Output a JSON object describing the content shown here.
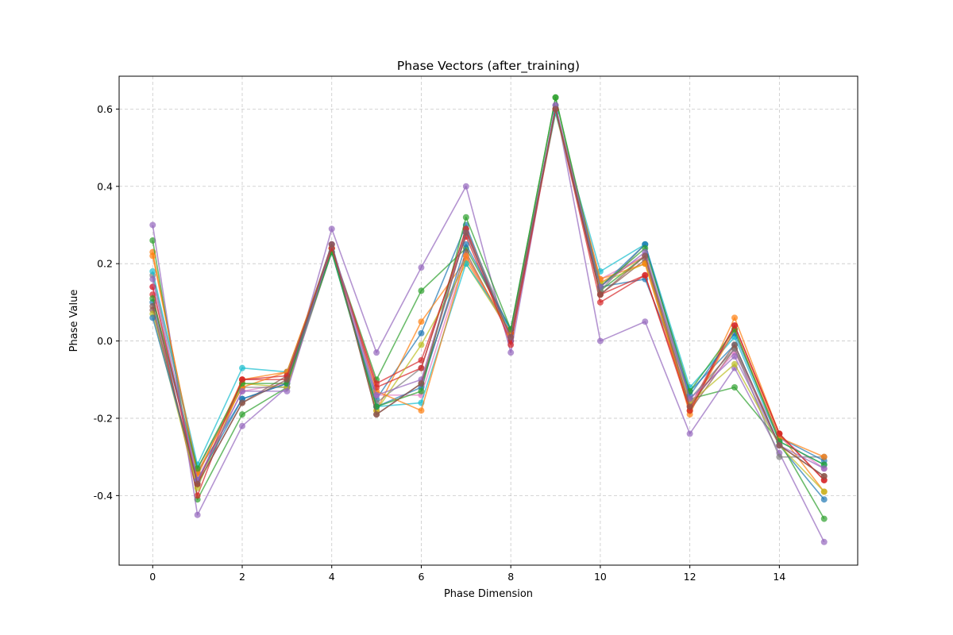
{
  "chart_data": {
    "type": "line",
    "title": "Phase Vectors (after_training)",
    "xlabel": "Phase Dimension",
    "ylabel": "Phase Value",
    "xlim": [
      -0.75,
      15.75
    ],
    "ylim": [
      -0.58,
      0.685
    ],
    "xticks": [
      "0",
      "2",
      "4",
      "6",
      "8",
      "10",
      "12",
      "14"
    ],
    "yticks": [
      "-0.4",
      "-0.2",
      "0.0",
      "0.2",
      "0.4",
      "0.6"
    ],
    "grid": true,
    "x": [
      0,
      1,
      2,
      3,
      4,
      5,
      6,
      7,
      8,
      9,
      10,
      11,
      12,
      13,
      14,
      15
    ],
    "colors": [
      "#1f77b4",
      "#ff7f0e",
      "#2ca02c",
      "#d62728",
      "#9467bd",
      "#8c564b",
      "#e377c2",
      "#7f7f7f",
      "#bcbd22",
      "#17becf"
    ],
    "series": [
      {
        "values": [
          0.1,
          -0.34,
          -0.15,
          -0.11,
          0.23,
          -0.15,
          0.02,
          0.3,
          0.0,
          0.6,
          0.14,
          0.16,
          -0.13,
          -0.01,
          -0.27,
          -0.41
        ]
      },
      {
        "values": [
          0.23,
          -0.35,
          -0.1,
          -0.08,
          0.24,
          -0.18,
          0.05,
          0.21,
          0.02,
          0.6,
          0.15,
          0.22,
          -0.19,
          0.06,
          -0.24,
          -0.39
        ]
      },
      {
        "values": [
          0.26,
          -0.41,
          -0.19,
          -0.12,
          0.24,
          -0.1,
          0.13,
          0.24,
          0.03,
          0.63,
          0.13,
          0.22,
          -0.15,
          -0.12,
          -0.26,
          -0.46
        ]
      },
      {
        "values": [
          0.12,
          -0.4,
          -0.1,
          -0.1,
          0.24,
          -0.11,
          -0.05,
          0.27,
          0.0,
          0.6,
          0.1,
          0.17,
          -0.17,
          0.04,
          -0.24,
          -0.36
        ]
      },
      {
        "values": [
          0.3,
          -0.45,
          -0.22,
          -0.12,
          0.29,
          -0.03,
          0.19,
          0.4,
          -0.03,
          0.61,
          0.0,
          0.05,
          -0.24,
          -0.07,
          -0.29,
          -0.52
        ]
      },
      {
        "values": [
          0.08,
          -0.37,
          -0.16,
          -0.09,
          0.25,
          -0.19,
          -0.11,
          0.23,
          0.01,
          0.6,
          0.12,
          0.21,
          -0.18,
          -0.02,
          -0.27,
          -0.35
        ]
      },
      {
        "values": [
          0.14,
          -0.36,
          -0.13,
          -0.11,
          0.23,
          -0.14,
          -0.14,
          0.22,
          0.01,
          0.59,
          0.16,
          0.22,
          -0.16,
          -0.03,
          -0.25,
          -0.33
        ]
      },
      {
        "values": [
          0.17,
          -0.33,
          -0.12,
          -0.12,
          0.23,
          -0.16,
          -0.07,
          0.29,
          0.02,
          0.6,
          0.13,
          0.25,
          -0.15,
          -0.02,
          -0.3,
          -0.3
        ]
      },
      {
        "values": [
          0.07,
          -0.38,
          -0.11,
          -0.12,
          0.24,
          -0.18,
          -0.01,
          0.2,
          0.02,
          0.59,
          0.15,
          0.2,
          -0.16,
          -0.06,
          -0.27,
          -0.39
        ]
      },
      {
        "values": [
          0.18,
          -0.32,
          -0.07,
          -0.08,
          0.23,
          -0.17,
          -0.16,
          0.2,
          0.03,
          0.59,
          0.18,
          0.25,
          -0.12,
          0.01,
          -0.26,
          -0.32
        ]
      },
      {
        "values": [
          0.06,
          -0.36,
          -0.15,
          -0.11,
          0.24,
          -0.17,
          -0.12,
          0.25,
          0.03,
          0.6,
          0.14,
          0.25,
          -0.14,
          0.02,
          -0.25,
          -0.31
        ]
      },
      {
        "values": [
          0.22,
          -0.34,
          -0.12,
          -0.08,
          0.24,
          -0.13,
          -0.18,
          0.22,
          0.02,
          0.6,
          0.16,
          0.2,
          -0.18,
          0.03,
          -0.25,
          -0.3
        ]
      },
      {
        "values": [
          0.11,
          -0.33,
          -0.11,
          -0.11,
          0.23,
          -0.17,
          -0.13,
          0.32,
          0.03,
          0.63,
          0.14,
          0.24,
          -0.13,
          0.03,
          -0.26,
          -0.32
        ]
      },
      {
        "values": [
          0.14,
          -0.37,
          -0.1,
          -0.09,
          0.24,
          -0.12,
          -0.07,
          0.29,
          -0.01,
          0.6,
          0.12,
          0.17,
          -0.18,
          0.04,
          -0.24,
          -0.36
        ]
      },
      {
        "values": [
          0.16,
          -0.36,
          -0.13,
          -0.13,
          0.25,
          -0.14,
          -0.1,
          0.28,
          0.01,
          0.61,
          0.14,
          0.23,
          -0.15,
          -0.04,
          -0.27,
          -0.33
        ]
      },
      {
        "values": [
          0.09,
          -0.37,
          -0.16,
          -0.1,
          0.25,
          -0.19,
          -0.11,
          0.28,
          0.01,
          0.6,
          0.12,
          0.22,
          -0.17,
          -0.01,
          -0.27,
          -0.35
        ]
      }
    ]
  }
}
